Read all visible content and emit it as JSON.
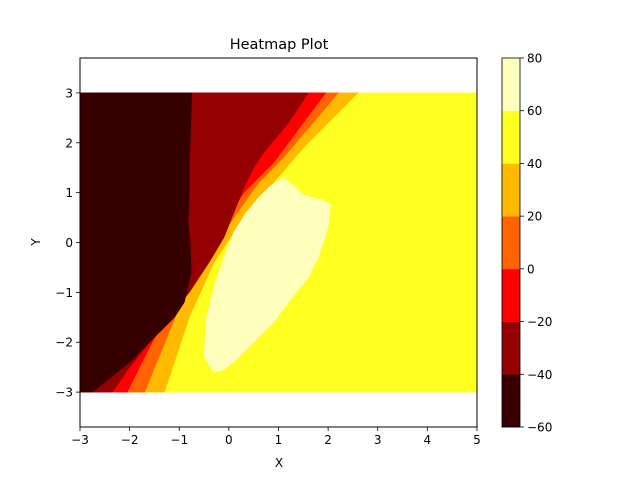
{
  "chart_data": {
    "type": "heatmap",
    "subtype": "filled-contour",
    "title": "Heatmap Plot",
    "xlabel": "X",
    "ylabel": "Y",
    "xlim": [
      -3,
      5
    ],
    "ylim": [
      -3.7,
      3.7
    ],
    "data_extent": {
      "x": [
        -3,
        5
      ],
      "y": [
        -3,
        3
      ]
    },
    "xticks": [
      -3,
      -2,
      -1,
      0,
      1,
      2,
      3,
      4,
      5
    ],
    "yticks": [
      -3,
      -2,
      -1,
      0,
      1,
      2,
      3
    ],
    "colormap": "hot",
    "colorbar": {
      "levels": [
        -60,
        -40,
        -20,
        0,
        20,
        40,
        60,
        80
      ],
      "ticks": [
        "−60",
        "−40",
        "−20",
        "0",
        "20",
        "40",
        "60",
        "80"
      ],
      "colors": [
        "#370000",
        "#950000",
        "#ff0000",
        "#ff6200",
        "#ffba00",
        "#ffff21",
        "#ffffbd"
      ]
    },
    "regions": [
      {
        "level": [
          -60,
          -40
        ],
        "color": "#370000",
        "x": [
          -3,
          -0.75,
          -0.78,
          -0.8,
          -0.8,
          -0.82,
          -0.78,
          -0.76,
          -0.9,
          -1.1,
          -1.5,
          -2.0,
          -2.5,
          -2.75,
          -3
        ],
        "y": [
          3,
          3,
          2,
          1.6,
          1,
          0.4,
          0,
          -0.6,
          -1.2,
          -1.5,
          -1.9,
          -2.4,
          -2.8,
          -3,
          -3
        ]
      },
      {
        "level": [
          -40,
          -20
        ],
        "color": "#950000",
        "x": [
          -0.75,
          1.6,
          1.2,
          0.7,
          0.5,
          0.3,
          0.1,
          -0.1,
          -0.4,
          -0.8,
          -1.2,
          -1.6,
          -2.0,
          -2.35,
          -2.75,
          -2.5,
          -2.0,
          -1.5,
          -1.1,
          -0.9,
          -0.76,
          -0.78,
          -0.82,
          -0.8,
          -0.8,
          -0.78
        ],
        "y": [
          3,
          3,
          2.4,
          1.8,
          1.5,
          1.1,
          0.6,
          0.1,
          -0.4,
          -1.0,
          -1.5,
          -2.0,
          -2.5,
          -3,
          -3,
          -2.8,
          -2.4,
          -1.9,
          -1.5,
          -1.2,
          -0.6,
          0,
          0.4,
          1,
          1.6,
          2
        ]
      }
    ],
    "z_summary": "lowest values (< -40) fill left side x < -0.8; highest values (60-80) form an island centered near (0.5, 0); values 40-60 fill the right side"
  }
}
